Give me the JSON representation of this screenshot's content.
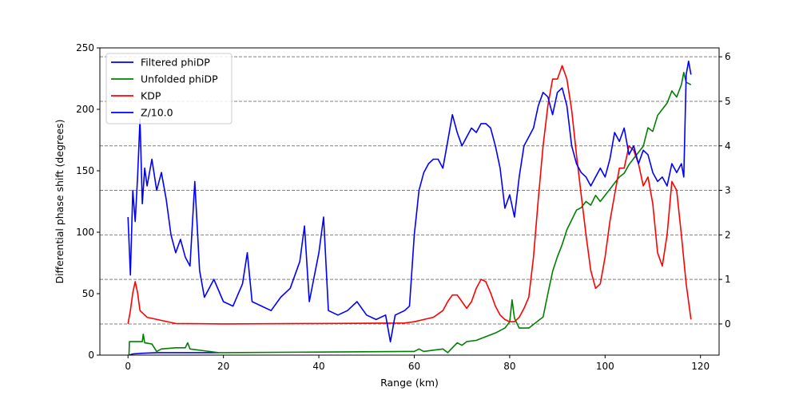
{
  "chart_data": {
    "type": "line",
    "title": "",
    "xlabel": "Range (km)",
    "ylabel": "Differential phase shift (degrees)",
    "y2label": "",
    "xlim": [
      -5.9,
      123.9
    ],
    "ylim": [
      0,
      250
    ],
    "y2lim": [
      -0.7,
      6.2
    ],
    "xticks": [
      0,
      20,
      40,
      60,
      80,
      100,
      120
    ],
    "yticks": [
      0,
      50,
      100,
      150,
      200,
      250
    ],
    "y2ticks": [
      0,
      1,
      2,
      3,
      4,
      5,
      6
    ],
    "grid": "dashed horizontal lines at right-axis ticks",
    "legend_position": "upper-left",
    "series": [
      {
        "name": "Filtered phiDP",
        "axis": "left",
        "color": "#0000ff",
        "points": [
          [
            0.3,
            0
          ],
          [
            1,
            1
          ],
          [
            3,
            1.5
          ],
          [
            6,
            2
          ],
          [
            10,
            2
          ],
          [
            15,
            2
          ],
          [
            19,
            2
          ]
        ]
      },
      {
        "name": "Unfolded phiDP",
        "axis": "left",
        "color": "#008000",
        "points": [
          [
            0.2,
            0
          ],
          [
            0.3,
            11
          ],
          [
            2,
            11
          ],
          [
            3,
            11
          ],
          [
            3.2,
            17
          ],
          [
            3.5,
            10
          ],
          [
            5,
            9
          ],
          [
            6,
            3
          ],
          [
            7,
            5
          ],
          [
            10,
            6
          ],
          [
            12,
            6
          ],
          [
            12.5,
            10
          ],
          [
            13,
            5
          ],
          [
            19,
            2
          ],
          [
            20,
            2
          ],
          [
            60,
            3
          ],
          [
            61,
            5
          ],
          [
            62,
            3
          ],
          [
            64,
            4
          ],
          [
            66,
            5
          ],
          [
            67,
            2
          ],
          [
            68,
            6
          ],
          [
            69,
            10
          ],
          [
            70,
            8
          ],
          [
            71,
            11
          ],
          [
            73,
            12
          ],
          [
            75,
            15
          ],
          [
            77,
            18
          ],
          [
            79,
            22
          ],
          [
            80,
            27
          ],
          [
            80.5,
            45
          ],
          [
            81,
            30
          ],
          [
            82,
            22
          ],
          [
            84,
            22
          ],
          [
            86,
            28
          ],
          [
            87,
            31
          ],
          [
            88,
            50
          ],
          [
            89,
            68
          ],
          [
            90,
            80
          ],
          [
            91,
            90
          ],
          [
            92,
            102
          ],
          [
            93,
            110
          ],
          [
            94,
            118
          ],
          [
            95,
            120
          ],
          [
            96,
            125
          ],
          [
            97,
            122
          ],
          [
            98,
            130
          ],
          [
            99,
            125
          ],
          [
            100,
            130
          ],
          [
            101,
            135
          ],
          [
            102,
            140
          ],
          [
            103,
            145
          ],
          [
            104,
            148
          ],
          [
            105,
            155
          ],
          [
            106,
            160
          ],
          [
            107,
            165
          ],
          [
            108,
            170
          ],
          [
            109,
            185
          ],
          [
            110,
            182
          ],
          [
            111,
            195
          ],
          [
            112,
            200
          ],
          [
            113,
            205
          ],
          [
            114,
            215
          ],
          [
            115,
            210
          ],
          [
            116,
            220
          ],
          [
            116.5,
            230
          ],
          [
            117,
            222
          ],
          [
            118,
            220
          ]
        ]
      },
      {
        "name": "KDP",
        "axis": "right",
        "color": "#ff0000",
        "points": [
          [
            0,
            0
          ],
          [
            0.5,
            0.3
          ],
          [
            1,
            0.7
          ],
          [
            1.5,
            0.95
          ],
          [
            2,
            0.7
          ],
          [
            2.5,
            0.3
          ],
          [
            4,
            0.15
          ],
          [
            10,
            0.01
          ],
          [
            20,
            0
          ],
          [
            40,
            0.01
          ],
          [
            58,
            0.02
          ],
          [
            60,
            0.05
          ],
          [
            62,
            0.1
          ],
          [
            64,
            0.15
          ],
          [
            66,
            0.3
          ],
          [
            67,
            0.5
          ],
          [
            68,
            0.65
          ],
          [
            69,
            0.65
          ],
          [
            70,
            0.5
          ],
          [
            71,
            0.35
          ],
          [
            72,
            0.5
          ],
          [
            73,
            0.8
          ],
          [
            74,
            1.0
          ],
          [
            75,
            0.95
          ],
          [
            76,
            0.7
          ],
          [
            77,
            0.4
          ],
          [
            78,
            0.2
          ],
          [
            79,
            0.1
          ],
          [
            80,
            0.05
          ],
          [
            81,
            0.05
          ],
          [
            82,
            0.15
          ],
          [
            83,
            0.35
          ],
          [
            84,
            0.6
          ],
          [
            85,
            1.5
          ],
          [
            86,
            2.8
          ],
          [
            87,
            4.0
          ],
          [
            88,
            4.9
          ],
          [
            89,
            5.5
          ],
          [
            90,
            5.5
          ],
          [
            91,
            5.8
          ],
          [
            92,
            5.5
          ],
          [
            93,
            4.8
          ],
          [
            94,
            3.8
          ],
          [
            95,
            2.9
          ],
          [
            96,
            2.0
          ],
          [
            97,
            1.2
          ],
          [
            98,
            0.8
          ],
          [
            99,
            0.9
          ],
          [
            100,
            1.5
          ],
          [
            101,
            2.3
          ],
          [
            102,
            2.9
          ],
          [
            103,
            3.5
          ],
          [
            104,
            3.5
          ],
          [
            105,
            4.0
          ],
          [
            106,
            3.9
          ],
          [
            107,
            3.6
          ],
          [
            108,
            3.1
          ],
          [
            109,
            3.3
          ],
          [
            110,
            2.7
          ],
          [
            111,
            1.6
          ],
          [
            112,
            1.3
          ],
          [
            113,
            2.0
          ],
          [
            114,
            3.2
          ],
          [
            115,
            3.0
          ],
          [
            116,
            2.0
          ],
          [
            117,
            0.9
          ],
          [
            118,
            0.1
          ]
        ]
      },
      {
        "name": "Z/10.0",
        "axis": "right",
        "color": "#0000ff",
        "points": [
          [
            0,
            2.4
          ],
          [
            0.5,
            1.1
          ],
          [
            1,
            3.0
          ],
          [
            1.5,
            2.3
          ],
          [
            2,
            3.3
          ],
          [
            2.5,
            4.6
          ],
          [
            3,
            2.7
          ],
          [
            3.5,
            3.5
          ],
          [
            4,
            3.1
          ],
          [
            5,
            3.7
          ],
          [
            6,
            3.0
          ],
          [
            7,
            3.4
          ],
          [
            8,
            2.8
          ],
          [
            9,
            2.0
          ],
          [
            10,
            1.6
          ],
          [
            11,
            1.9
          ],
          [
            12,
            1.5
          ],
          [
            13,
            1.3
          ],
          [
            14,
            3.2
          ],
          [
            15,
            1.2
          ],
          [
            16,
            0.6
          ],
          [
            18,
            1.0
          ],
          [
            20,
            0.5
          ],
          [
            22,
            0.4
          ],
          [
            24,
            0.9
          ],
          [
            25,
            1.6
          ],
          [
            26,
            0.5
          ],
          [
            28,
            0.4
          ],
          [
            30,
            0.3
          ],
          [
            32,
            0.6
          ],
          [
            34,
            0.8
          ],
          [
            36,
            1.4
          ],
          [
            37,
            2.2
          ],
          [
            38,
            0.5
          ],
          [
            40,
            1.6
          ],
          [
            41,
            2.4
          ],
          [
            42,
            0.3
          ],
          [
            44,
            0.2
          ],
          [
            46,
            0.3
          ],
          [
            48,
            0.5
          ],
          [
            50,
            0.2
          ],
          [
            52,
            0.1
          ],
          [
            54,
            0.2
          ],
          [
            55,
            -0.4
          ],
          [
            56,
            0.2
          ],
          [
            58,
            0.3
          ],
          [
            59,
            0.4
          ],
          [
            60,
            2.0
          ],
          [
            61,
            3.0
          ],
          [
            62,
            3.4
          ],
          [
            63,
            3.6
          ],
          [
            64,
            3.7
          ],
          [
            65,
            3.7
          ],
          [
            66,
            3.5
          ],
          [
            67,
            4.1
          ],
          [
            68,
            4.7
          ],
          [
            69,
            4.3
          ],
          [
            70,
            4.0
          ],
          [
            71,
            4.2
          ],
          [
            72,
            4.4
          ],
          [
            73,
            4.3
          ],
          [
            74,
            4.5
          ],
          [
            75,
            4.5
          ],
          [
            76,
            4.4
          ],
          [
            77,
            4.0
          ],
          [
            78,
            3.5
          ],
          [
            79,
            2.6
          ],
          [
            80,
            2.9
          ],
          [
            81,
            2.4
          ],
          [
            82,
            3.3
          ],
          [
            83,
            4.0
          ],
          [
            84,
            4.2
          ],
          [
            85,
            4.4
          ],
          [
            86,
            4.9
          ],
          [
            87,
            5.2
          ],
          [
            88,
            5.1
          ],
          [
            89,
            4.7
          ],
          [
            90,
            5.2
          ],
          [
            91,
            5.3
          ],
          [
            92,
            4.9
          ],
          [
            93,
            4.0
          ],
          [
            94,
            3.6
          ],
          [
            95,
            3.4
          ],
          [
            96,
            3.3
          ],
          [
            97,
            3.1
          ],
          [
            98,
            3.3
          ],
          [
            99,
            3.5
          ],
          [
            100,
            3.3
          ],
          [
            101,
            3.7
          ],
          [
            102,
            4.3
          ],
          [
            103,
            4.1
          ],
          [
            104,
            4.4
          ],
          [
            105,
            3.8
          ],
          [
            106,
            4.0
          ],
          [
            107,
            3.6
          ],
          [
            108,
            3.9
          ],
          [
            109,
            3.8
          ],
          [
            110,
            3.4
          ],
          [
            111,
            3.2
          ],
          [
            112,
            3.3
          ],
          [
            113,
            3.1
          ],
          [
            114,
            3.6
          ],
          [
            115,
            3.4
          ],
          [
            116,
            3.6
          ],
          [
            116.5,
            3.3
          ],
          [
            117,
            5.6
          ],
          [
            117.5,
            5.9
          ],
          [
            118,
            5.6
          ]
        ]
      }
    ]
  }
}
